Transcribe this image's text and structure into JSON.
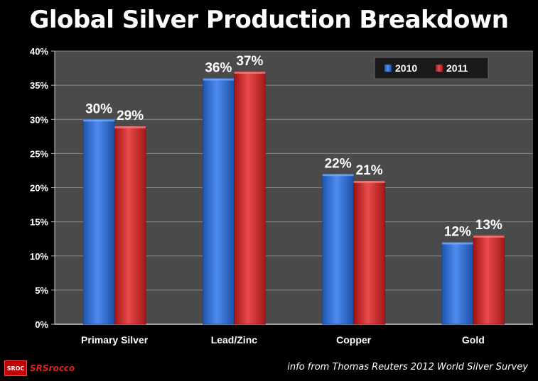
{
  "chart_data": {
    "type": "bar",
    "title": "Global Silver Production Breakdown",
    "categories": [
      "Primary Silver",
      "Lead/Zinc",
      "Copper",
      "Gold"
    ],
    "series": [
      {
        "name": "2010",
        "values": [
          30,
          36,
          22,
          12
        ],
        "labels": [
          "30%",
          "36%",
          "22%",
          "12%"
        ],
        "color": "#2e6fd6"
      },
      {
        "name": "2011",
        "values": [
          29,
          37,
          21,
          13
        ],
        "labels": [
          "29%",
          "37%",
          "21%",
          "13%"
        ],
        "color": "#d42a2a"
      }
    ],
    "ylim": [
      0,
      40
    ],
    "yticks": [
      "0%",
      "5%",
      "10%",
      "15%",
      "20%",
      "25%",
      "30%",
      "35%",
      "40%"
    ],
    "ylabel": "",
    "xlabel": "",
    "grid": true,
    "legend": "top-right",
    "plot_background": "#4a4a4a"
  },
  "footer": {
    "logo_badge": "SROC",
    "logo_text": "SRSrocco",
    "source": "info from Thomas Reuters 2012 World Silver Survey"
  }
}
